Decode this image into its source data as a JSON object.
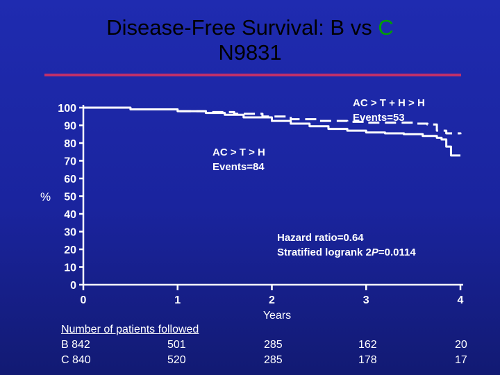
{
  "title": {
    "line1_prefix": "Disease-Free Survival: B vs ",
    "line1_accent": "C",
    "line2": "N9831"
  },
  "colors": {
    "background": "#1f2bb0",
    "title_text": "#000000",
    "title_accent": "#00a000",
    "title_rule": "#c0306a",
    "curve": "#ffffff",
    "axis": "#ffffff"
  },
  "chart_data": {
    "type": "line",
    "title": "Disease-Free Survival: B vs C",
    "subtitle": "N9831",
    "xlabel": "Years",
    "ylabel": "%",
    "xlim": [
      0,
      4
    ],
    "ylim": [
      0,
      100
    ],
    "x_ticks": [
      "0",
      "1",
      "2",
      "3",
      "4"
    ],
    "y_ticks": [
      "0",
      "10",
      "20",
      "30",
      "40",
      "50",
      "60",
      "70",
      "80",
      "90",
      "100"
    ],
    "grid": false,
    "series": [
      {
        "name": "AC > T + H > H",
        "style": "dashed",
        "x": [
          0,
          0.1,
          0.5,
          1.0,
          1.3,
          1.6,
          1.9,
          2.2,
          2.5,
          2.8,
          3.0,
          3.5,
          3.65,
          3.75,
          3.85,
          4.0
        ],
        "y": [
          100,
          100,
          99,
          98,
          97.5,
          96.5,
          95,
          93.5,
          92.5,
          92,
          91.5,
          91,
          90.5,
          87,
          85.5,
          85
        ]
      },
      {
        "name": "AC > T > H",
        "style": "solid",
        "x": [
          0,
          0.1,
          0.5,
          1.0,
          1.3,
          1.5,
          1.7,
          2.0,
          2.2,
          2.4,
          2.6,
          2.8,
          3.0,
          3.2,
          3.4,
          3.6,
          3.75,
          3.8,
          3.85,
          3.9,
          4.0
        ],
        "y": [
          100,
          100,
          99,
          98,
          97,
          96,
          94.5,
          92.5,
          91,
          89.5,
          88,
          87,
          86,
          85.5,
          85,
          84,
          83,
          82,
          78,
          73,
          73
        ]
      }
    ],
    "annotations": [
      {
        "lines": [
          "AC > T + H > H",
          "Events=53"
        ]
      },
      {
        "lines": [
          "AC > T > H",
          "Events=84"
        ]
      },
      {
        "lines": [
          "Hazard ratio=0.64",
          "Stratified logrank 2P=0.0114"
        ]
      }
    ]
  },
  "patients_followed": {
    "heading": "Number of patients followed",
    "rows": [
      {
        "label": "B 842",
        "values": [
          "501",
          "285",
          "162",
          "20"
        ]
      },
      {
        "label": "C 840",
        "values": [
          "520",
          "285",
          "178",
          "17"
        ]
      }
    ]
  }
}
